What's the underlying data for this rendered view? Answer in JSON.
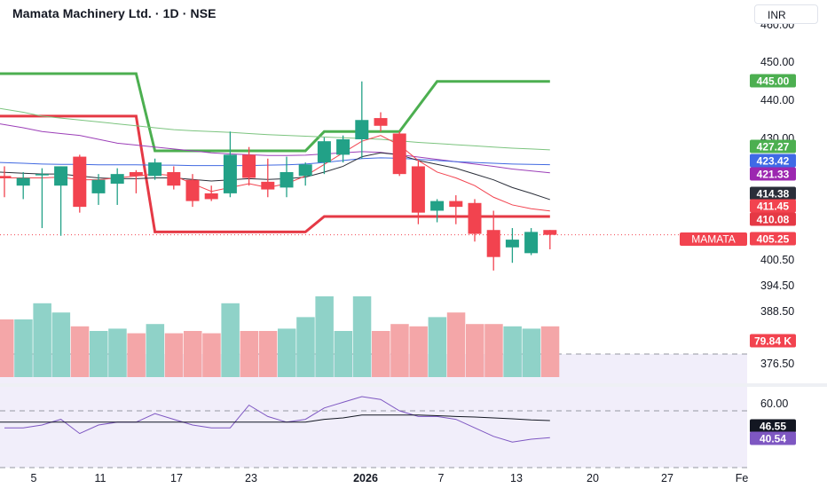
{
  "header": {
    "title": "Mamata Machinery Ltd. · 1D · NSE",
    "currency": "INR"
  },
  "colors": {
    "up": "#22a187",
    "down": "#f2434f",
    "vol_up": "#8fd2c8",
    "vol_down": "#f4a6a8",
    "green_line": "#4caf50",
    "red_line": "#e53945",
    "sma_green": "#7cc47f",
    "sma_purple": "#9c3fb8",
    "sma_blue": "#4169e1",
    "sma_black": "#2a2e39",
    "sma_red": "#f2434f",
    "rsi_line": "#7e57c2",
    "rsi_sma": "#131722",
    "rsi_band": "#f1eefa"
  },
  "price_axis": {
    "ticks": [
      "450.00",
      "440.00",
      "430.00",
      "400.50",
      "394.50",
      "388.50",
      "376.50"
    ],
    "top_tick_partial": "460.00"
  },
  "x_axis": {
    "labels": [
      "5",
      "11",
      "17",
      "23",
      "2026",
      "7",
      "13",
      "20",
      "27",
      "Fe"
    ]
  },
  "badges": [
    {
      "name": "upper-channel-badge",
      "text": "445.00",
      "color": "#4caf50"
    },
    {
      "name": "sma-green-badge",
      "text": "427.27",
      "color": "#4caf50"
    },
    {
      "name": "sma-blue-badge",
      "text": "423.42",
      "color": "#3f6ae6"
    },
    {
      "name": "sma-purple-badge",
      "text": "421.33",
      "color": "#9c27b0"
    },
    {
      "name": "sma-black-badge",
      "text": "414.38",
      "color": "#2a2e39"
    },
    {
      "name": "sma-red-badge",
      "text": "411.45",
      "color": "#f2434f"
    },
    {
      "name": "lower-channel-badge",
      "text": "410.08",
      "color": "#e53945"
    },
    {
      "name": "price-badge",
      "text": "405.25",
      "color": "#f2434f"
    },
    {
      "name": "volume-badge",
      "text": "79.84 K",
      "color": "#f2434f"
    },
    {
      "name": "rsi-sma-badge",
      "text": "46.55",
      "color": "#131722"
    },
    {
      "name": "rsi-badge",
      "text": "40.54",
      "color": "#7e57c2"
    }
  ],
  "symbol_tag": "MAMATA",
  "rsi_axis": {
    "ticks": [
      "60.00"
    ]
  },
  "chart_data": {
    "type": "candlestick",
    "candles": [
      {
        "x": "Dec 3",
        "open": 420.5,
        "high": 423.0,
        "low": 415.0,
        "close": 420.0
      },
      {
        "x": "Dec 4",
        "open": 418.0,
        "high": 421.5,
        "low": 414.5,
        "close": 420.0
      },
      {
        "x": "Dec 5",
        "open": 421.0,
        "high": 422.5,
        "low": 407.0,
        "close": 421.0
      },
      {
        "x": "Dec 8",
        "open": 418.0,
        "high": 423.0,
        "low": 405.0,
        "close": 423.0
      },
      {
        "x": "Dec 9",
        "open": 425.5,
        "high": 426.0,
        "low": 411.0,
        "close": 412.5
      },
      {
        "x": "Dec 10",
        "open": 416.0,
        "high": 421.0,
        "low": 413.0,
        "close": 419.5
      },
      {
        "x": "Dec 11",
        "open": 418.5,
        "high": 422.5,
        "low": 413.0,
        "close": 421.0
      },
      {
        "x": "Dec 12",
        "open": 421.5,
        "high": 422.0,
        "low": 416.0,
        "close": 420.5
      },
      {
        "x": "Dec 15",
        "open": 420.5,
        "high": 425.0,
        "low": 419.5,
        "close": 424.0
      },
      {
        "x": "Dec 16",
        "open": 421.5,
        "high": 423.0,
        "low": 417.0,
        "close": 418.0
      },
      {
        "x": "Dec 17",
        "open": 419.5,
        "high": 421.0,
        "low": 412.5,
        "close": 414.0
      },
      {
        "x": "Dec 18",
        "open": 416.0,
        "high": 418.0,
        "low": 414.0,
        "close": 414.5
      },
      {
        "x": "Dec 19",
        "open": 416.0,
        "high": 432.0,
        "low": 415.0,
        "close": 426.0
      },
      {
        "x": "Dec 22",
        "open": 426.0,
        "high": 428.0,
        "low": 418.0,
        "close": 420.0
      },
      {
        "x": "Dec 23",
        "open": 419.0,
        "high": 425.0,
        "low": 415.0,
        "close": 417.0
      },
      {
        "x": "Dec 24",
        "open": 417.5,
        "high": 425.5,
        "low": 415.0,
        "close": 421.5
      },
      {
        "x": "Dec 26",
        "open": 420.5,
        "high": 424.0,
        "low": 418.0,
        "close": 423.5
      },
      {
        "x": "Dec 29",
        "open": 424.0,
        "high": 430.5,
        "low": 421.0,
        "close": 429.5
      },
      {
        "x": "Dec 30",
        "open": 426.0,
        "high": 431.0,
        "low": 424.0,
        "close": 430.0
      },
      {
        "x": "Dec 31",
        "open": 430.0,
        "high": 445.0,
        "low": 425.0,
        "close": 435.0
      },
      {
        "x": "Jan 1",
        "open": 435.5,
        "high": 437.0,
        "low": 432.0,
        "close": 433.5
      },
      {
        "x": "Jan 2",
        "open": 431.5,
        "high": 432.0,
        "low": 420.5,
        "close": 421.0
      },
      {
        "x": "Jan 5",
        "open": 423.0,
        "high": 424.5,
        "low": 408.0,
        "close": 411.0
      },
      {
        "x": "Jan 6",
        "open": 411.5,
        "high": 414.5,
        "low": 408.5,
        "close": 414.0
      },
      {
        "x": "Jan 7",
        "open": 414.0,
        "high": 415.5,
        "low": 408.0,
        "close": 412.5
      },
      {
        "x": "Jan 8",
        "open": 413.5,
        "high": 414.5,
        "low": 403.5,
        "close": 405.5
      },
      {
        "x": "Jan 9",
        "open": 406.5,
        "high": 411.5,
        "low": 396.0,
        "close": 399.5
      },
      {
        "x": "Jan 12",
        "open": 402.0,
        "high": 407.0,
        "low": 398.0,
        "close": 404.0
      },
      {
        "x": "Jan 13",
        "open": 400.5,
        "high": 407.0,
        "low": 400.0,
        "close": 406.0
      },
      {
        "x": "Jan 14",
        "open": 406.5,
        "high": 406.5,
        "low": 401.5,
        "close": 405.25
      }
    ],
    "volume_values": [
      55,
      55,
      62,
      58,
      52,
      50,
      51,
      49,
      53,
      49,
      50,
      49,
      62,
      50,
      50,
      51,
      56,
      65,
      50,
      65,
      50,
      53,
      52,
      56,
      58,
      53,
      53,
      52,
      51,
      52
    ],
    "upper_channel": [
      {
        "x": "Dec 3",
        "y": 447
      },
      {
        "x": "Dec 12",
        "y": 447
      },
      {
        "x": "Dec 15",
        "y": 427
      },
      {
        "x": "Dec 26",
        "y": 427
      },
      {
        "x": "Dec 29",
        "y": 432
      },
      {
        "x": "Jan 2",
        "y": 432
      },
      {
        "x": "Jan 6",
        "y": 445
      },
      {
        "x": "Jan 14",
        "y": 445
      }
    ],
    "lower_channel": [
      {
        "x": "Dec 3",
        "y": 436
      },
      {
        "x": "Dec 12",
        "y": 436
      },
      {
        "x": "Dec 15",
        "y": 406
      },
      {
        "x": "Dec 26",
        "y": 406
      },
      {
        "x": "Dec 29",
        "y": 410
      },
      {
        "x": "Jan 14",
        "y": 410
      }
    ],
    "sma_lines": [
      {
        "color_key": "sma_green",
        "values": [
          438,
          437,
          436,
          435.5,
          435,
          434.5,
          434,
          433.5,
          433,
          432.5,
          432.2,
          432,
          431.8,
          431.5,
          431.2,
          431,
          430.8,
          430.6,
          430.4,
          430.2,
          430,
          429.6,
          429.2,
          428.9,
          428.6,
          428.3,
          428,
          427.7,
          427.5,
          427.27
        ]
      },
      {
        "color_key": "sma_purple",
        "values": [
          434,
          433,
          432,
          431.5,
          431,
          430,
          429,
          428.5,
          428,
          427.5,
          427,
          426.5,
          426.2,
          426,
          425.8,
          425.8,
          425.9,
          426.2,
          426.5,
          426.8,
          426.6,
          426,
          425.4,
          424.8,
          424.2,
          423.6,
          423,
          422.3,
          421.8,
          421.33
        ]
      },
      {
        "color_key": "sma_blue",
        "values": [
          424,
          423.8,
          423.6,
          423.5,
          423.5,
          423.4,
          423.4,
          423.4,
          423.3,
          423.3,
          423.2,
          423.2,
          423.2,
          423.2,
          423.3,
          423.4,
          423.6,
          424,
          424.5,
          425,
          425.2,
          425.1,
          424.8,
          424.5,
          424.2,
          424,
          423.8,
          423.6,
          423.5,
          423.42
        ]
      },
      {
        "color_key": "sma_black",
        "values": [
          421.5,
          421.2,
          421,
          421,
          420.5,
          420,
          419.8,
          419.8,
          420,
          420,
          419.6,
          419.2,
          419.5,
          419.8,
          419.6,
          419.8,
          420.2,
          421.5,
          423,
          425.5,
          426.5,
          426,
          424.5,
          423.5,
          422.5,
          421,
          419.5,
          417.5,
          416,
          414.38
        ]
      },
      {
        "color_key": "sma_red",
        "values": [
          420,
          420,
          420,
          420.2,
          419.5,
          419.5,
          420,
          420.5,
          421,
          420.6,
          418.5,
          416.5,
          417.5,
          418.5,
          417.5,
          418.5,
          420.5,
          423.5,
          426.5,
          429.5,
          431,
          428.5,
          424.5,
          421.5,
          420,
          418,
          415,
          413,
          412,
          411.45
        ]
      }
    ],
    "rsi": {
      "values": [
        44,
        44,
        45,
        47,
        42,
        45,
        46,
        46,
        49,
        47,
        45,
        44,
        44,
        52,
        48,
        46,
        47,
        51,
        53,
        55,
        54,
        50,
        48,
        48,
        47,
        44,
        41,
        39,
        40,
        40.54
      ],
      "sma": [
        46,
        46,
        46,
        46,
        46,
        46,
        46,
        46,
        46,
        46,
        46,
        46,
        46,
        46,
        46,
        46,
        46,
        47,
        47.5,
        48.5,
        48.5,
        48.5,
        48.5,
        48.3,
        48,
        47.8,
        47.5,
        47.2,
        46.8,
        46.55
      ]
    }
  }
}
